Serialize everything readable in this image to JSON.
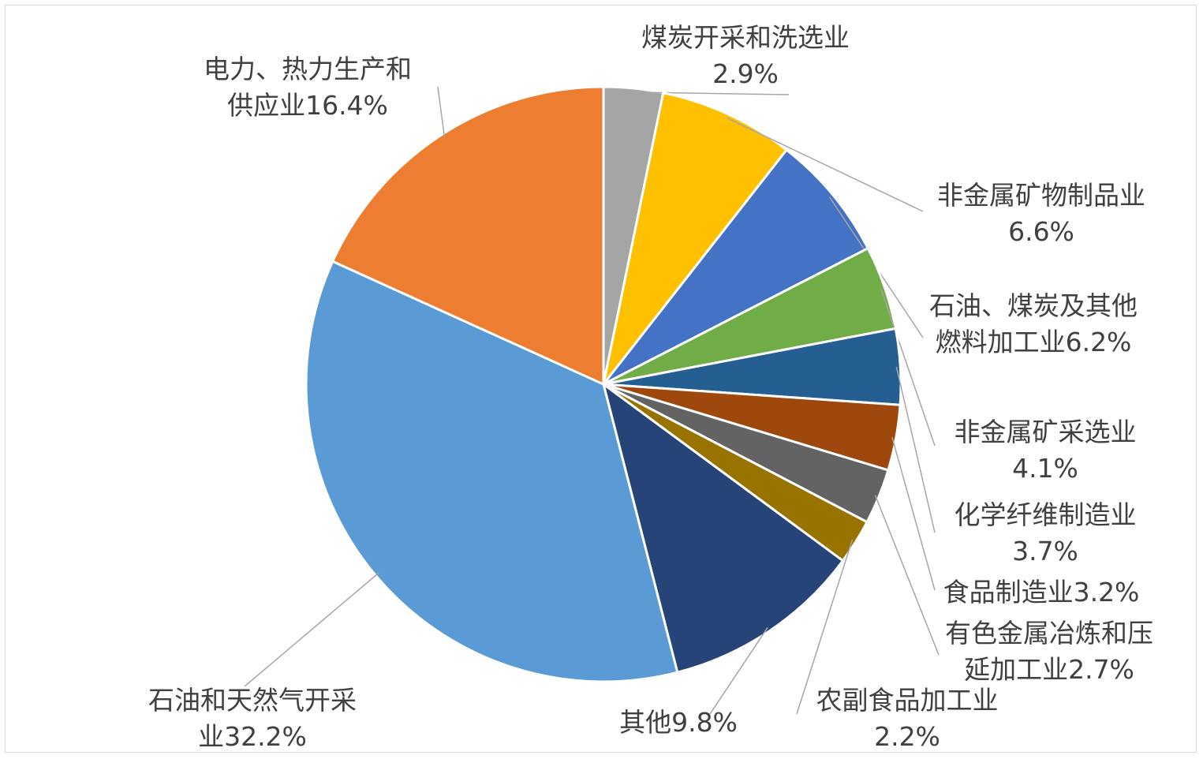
{
  "chart_data": {
    "type": "pie",
    "categories": [
      "煤炭开采和洗选业",
      "非金属矿物制品业",
      "石油、煤炭及其他燃料加工业",
      "非金属矿采选业",
      "化学纤维制造业",
      "食品制造业",
      "有色金属冶炼和压延加工业",
      "农副食品加工业",
      "其他",
      "石油和天然气开采业",
      "电力、热力生产和供应业"
    ],
    "values": [
      2.9,
      6.6,
      6.2,
      4.1,
      3.7,
      3.2,
      2.7,
      2.2,
      9.8,
      32.2,
      16.4
    ],
    "value_labels": [
      "2.9%",
      "6.6%",
      "6.2%",
      "4.1%",
      "3.7%",
      "3.2%",
      "2.7%",
      "2.2%",
      "9.8%",
      "32.2%",
      "16.4%"
    ],
    "colors": [
      "#a5a5a5",
      "#ffc000",
      "#4472c4",
      "#70ad47",
      "#255e91",
      "#9e480e",
      "#636363",
      "#997300",
      "#264478",
      "#5b9bd5",
      "#ed7d31"
    ]
  }
}
